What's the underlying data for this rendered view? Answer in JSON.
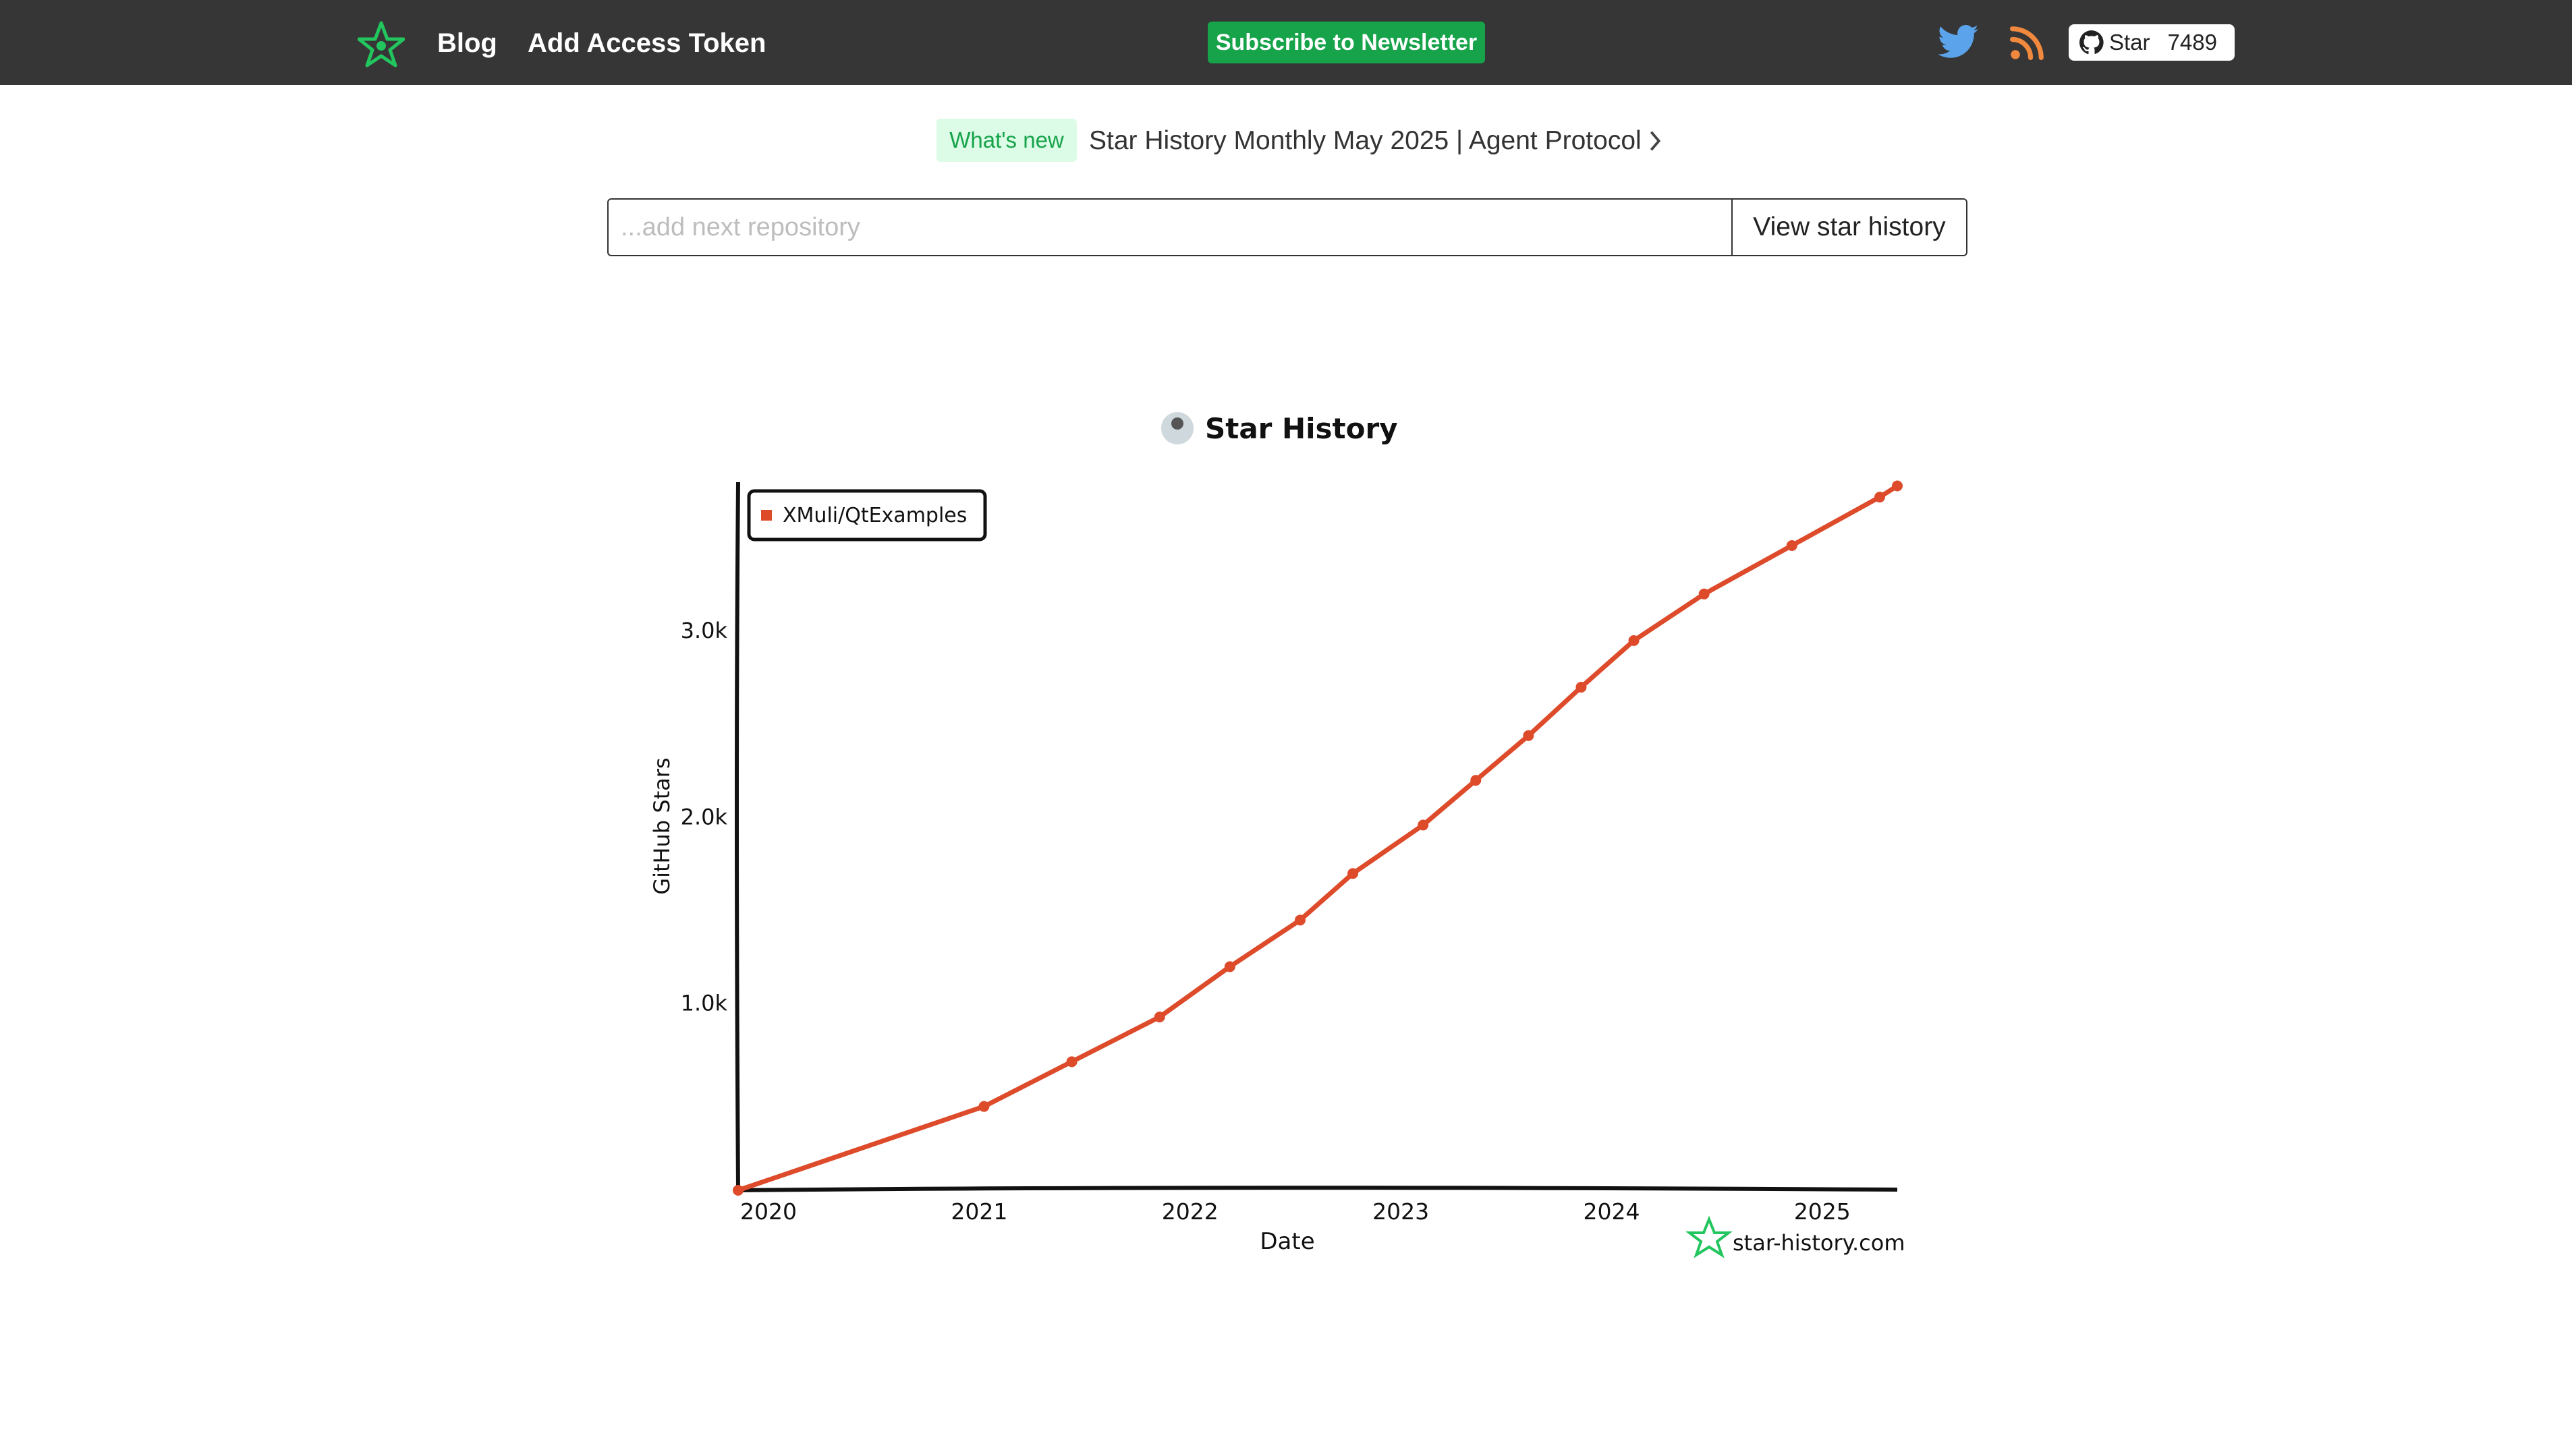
{
  "header": {
    "logo_icon": "star-history-logo-icon",
    "nav": [
      {
        "label": "Blog"
      },
      {
        "label": "Add Access Token"
      }
    ],
    "subscribe_label": "Subscribe to Newsletter",
    "twitter_icon": "twitter-icon",
    "rss_icon": "rss-icon",
    "github": {
      "label": "Star",
      "count": "7489"
    },
    "colors": {
      "bar": "#363636",
      "accent": "#16a34a"
    }
  },
  "announcement": {
    "badge": "What's new",
    "text": "Star History Monthly May 2025 | Agent Protocol"
  },
  "search": {
    "placeholder": "...add next repository",
    "value": "",
    "button_label": "View star history"
  },
  "chart_data": {
    "type": "line",
    "title": "Star History",
    "xlabel": "Date",
    "ylabel": "GitHub Stars",
    "x_ticks": [
      "2020",
      "2021",
      "2022",
      "2023",
      "2024",
      "2025"
    ],
    "y_ticks": [
      "1.0k",
      "2.0k",
      "3.0k"
    ],
    "ylim": [
      0,
      3800
    ],
    "xlim": [
      "2020-01",
      "2025-06"
    ],
    "legend_position": "top-left",
    "watermark": "star-history.com",
    "series": [
      {
        "name": "XMuli/QtExamples",
        "color": "#dd4b2b",
        "points": [
          [
            "2020-01",
            0
          ],
          [
            "2021-03",
            450
          ],
          [
            "2021-08",
            690
          ],
          [
            "2022-01",
            930
          ],
          [
            "2022-05",
            1200
          ],
          [
            "2022-09",
            1450
          ],
          [
            "2022-12",
            1700
          ],
          [
            "2023-04",
            1960
          ],
          [
            "2023-07",
            2200
          ],
          [
            "2023-10",
            2440
          ],
          [
            "2024-01",
            2700
          ],
          [
            "2024-04",
            2950
          ],
          [
            "2024-08",
            3200
          ],
          [
            "2025-01",
            3460
          ],
          [
            "2025-06",
            3720
          ],
          [
            "2025-07",
            3780
          ]
        ]
      }
    ]
  }
}
